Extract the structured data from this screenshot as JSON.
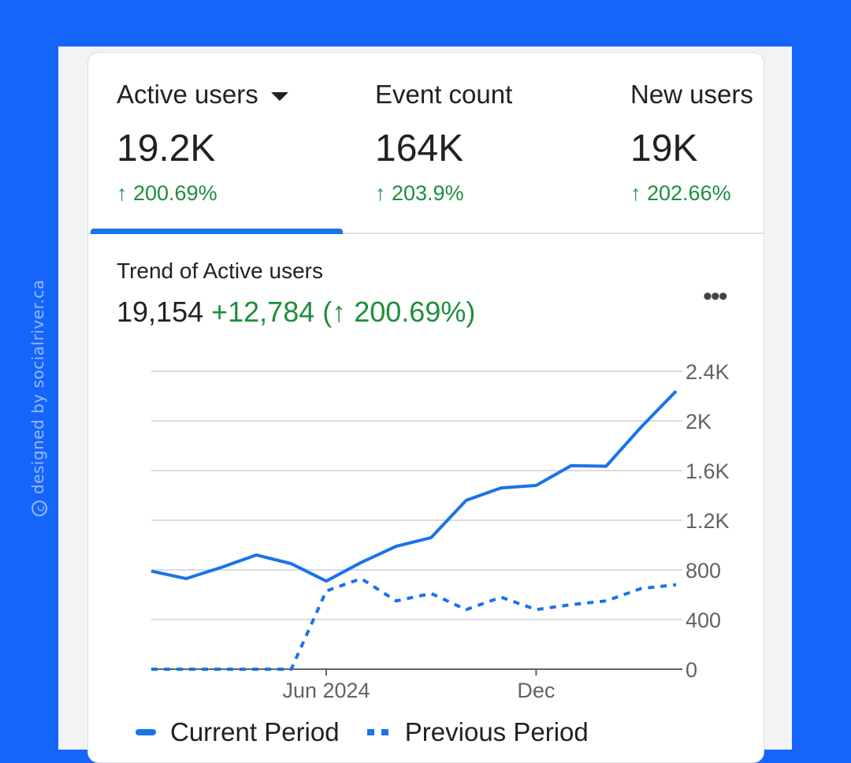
{
  "watermark": "designed by socialriver.ca",
  "tabs": [
    {
      "title": "Active users",
      "value": "19.2K",
      "change": "↑ 200.69%"
    },
    {
      "title": "Event count",
      "value": "164K",
      "change": "↑ 203.9%"
    },
    {
      "title": "New users",
      "value": "19K",
      "change": "↑ 202.66%"
    }
  ],
  "trend": {
    "title": "Trend of Active users",
    "total": "19,154",
    "delta": "+12,784 (↑ 200.69%)"
  },
  "colors": {
    "accent": "#1a73e8",
    "positive": "#1e8e3e",
    "background": "#1565fb"
  },
  "chart_data": {
    "type": "line",
    "x_tick_labels": [
      "Jun 2024",
      "Dec"
    ],
    "y_ticks": [
      "0",
      "400",
      "800",
      "1.2K",
      "1.6K",
      "2K",
      "2.4K"
    ],
    "ylim": [
      0,
      2400
    ],
    "grid": true,
    "legend_position": "bottom",
    "series": [
      {
        "name": "Current Period",
        "style": "solid",
        "values": [
          790,
          730,
          820,
          920,
          850,
          710,
          860,
          990,
          1060,
          1360,
          1460,
          1480,
          1640,
          1635,
          1950,
          2240
        ]
      },
      {
        "name": "Previous Period",
        "style": "dotted",
        "values": [
          0,
          0,
          0,
          0,
          0,
          630,
          730,
          550,
          610,
          480,
          580,
          480,
          520,
          550,
          650,
          680
        ]
      }
    ]
  }
}
